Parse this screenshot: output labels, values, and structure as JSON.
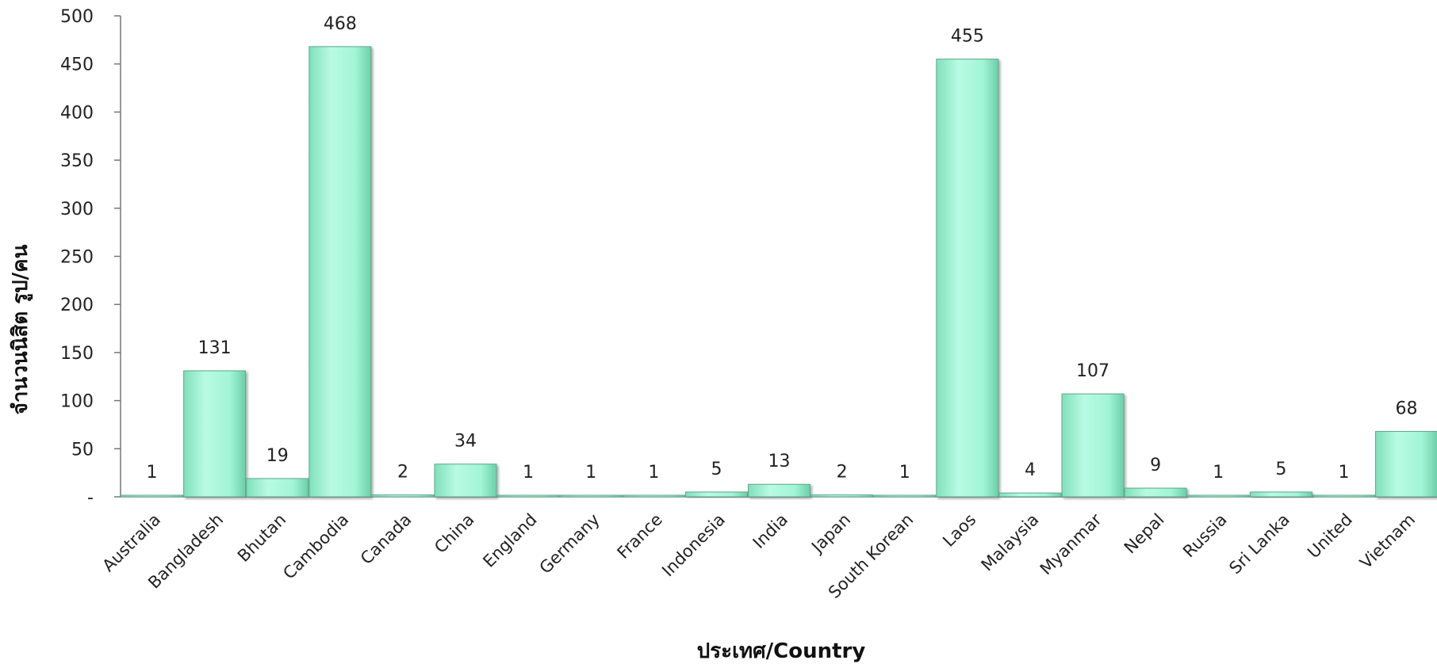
{
  "chart_data": {
    "type": "bar",
    "xlabel": "ประเทศ/Country",
    "ylabel": "จำนวนนิสิต รูป/คน",
    "categories": [
      "Australia",
      "Bangladesh",
      "Bhutan",
      "Cambodia",
      "Canada",
      "China",
      "England",
      "Germany",
      "France",
      "Indonesia",
      "India",
      "Japan",
      "South Korean",
      "Laos",
      "Malaysia",
      "Myanmar",
      "Nepal",
      "Russia",
      "Sri Lanka",
      "United",
      "Vietnam"
    ],
    "values": [
      1,
      131,
      19,
      468,
      2,
      34,
      1,
      1,
      1,
      5,
      13,
      2,
      1,
      455,
      4,
      107,
      9,
      1,
      5,
      1,
      68
    ],
    "ylim": [
      0,
      500
    ],
    "yticks": [
      0,
      50,
      100,
      150,
      200,
      250,
      300,
      350,
      400,
      450,
      500
    ],
    "ytick_labels": [
      "-",
      "50",
      "100",
      "150",
      "200",
      "250",
      "300",
      "350",
      "400",
      "450",
      "500"
    ],
    "data_labels": [
      "1",
      "131",
      "19",
      "468",
      "2",
      "34",
      "1",
      "1",
      "1",
      "5",
      "13",
      "2",
      "1",
      "455",
      "4",
      "107",
      "9",
      "1",
      "5",
      "1",
      "68"
    ],
    "grid": false,
    "legend": "none",
    "bar_color": "#9ff5d4",
    "bar_edge_color": "#5fa88a"
  }
}
